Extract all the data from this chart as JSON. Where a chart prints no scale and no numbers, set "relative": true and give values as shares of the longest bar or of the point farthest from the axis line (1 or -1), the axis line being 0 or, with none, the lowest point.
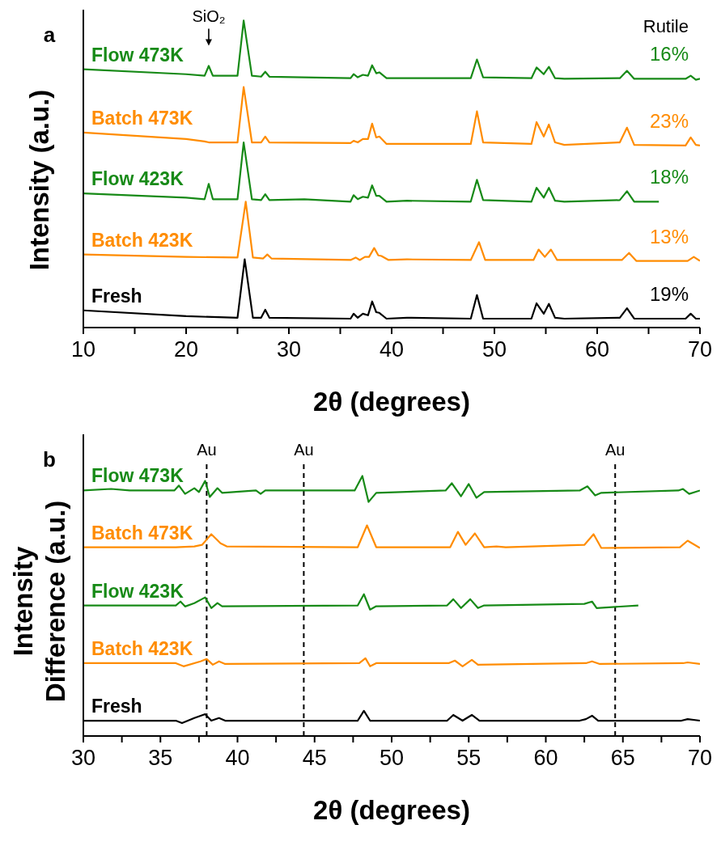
{
  "chart_data": [
    {
      "type": "line",
      "title": "a",
      "xlabel": "2θ (degrees)",
      "ylabel": "Intensity (a.u.)",
      "relative": true,
      "xlim": [
        10,
        70
      ],
      "xticks": [
        10,
        {
          "value": 15,
          "label": null
        },
        20,
        {
          "value": 25,
          "label": null
        },
        30,
        {
          "value": 35,
          "label": null
        },
        40,
        {
          "value": 45,
          "label": null
        },
        50,
        {
          "value": 55,
          "label": null
        },
        60,
        {
          "value": 65,
          "label": null
        },
        70
      ],
      "series": [
        {
          "name": "Flow 473K",
          "color": "#178a17",
          "x": [
            10,
            20,
            21.8,
            22.2,
            22.6,
            25,
            25.6,
            26.4,
            27.3,
            27.7,
            28.1,
            36,
            36.3,
            36.7,
            37.2,
            37.7,
            38.1,
            38.5,
            38.8,
            39.5,
            41.5,
            47.7,
            48.3,
            48.9,
            53.6,
            54.1,
            54.8,
            55.3,
            55.9,
            56.8,
            62.2,
            62.9,
            63.6,
            68.6,
            69.1,
            69.6,
            70
          ],
          "values": [
            0.841,
            0.825,
            0.82,
            0.852,
            0.82,
            0.82,
            1.0,
            0.82,
            0.817,
            0.833,
            0.817,
            0.812,
            0.825,
            0.815,
            0.823,
            0.82,
            0.854,
            0.828,
            0.831,
            0.812,
            0.812,
            0.812,
            0.873,
            0.815,
            0.812,
            0.847,
            0.825,
            0.849,
            0.812,
            0.81,
            0.812,
            0.836,
            0.81,
            0.81,
            0.82,
            0.807,
            0.81
          ]
        },
        {
          "name": "Batch 473K",
          "color": "#ff8c00",
          "x": [
            10,
            20,
            21.8,
            22.2,
            22.6,
            25,
            25.6,
            26.4,
            27.3,
            27.7,
            28.1,
            36,
            36.3,
            36.7,
            37.2,
            37.7,
            38.1,
            38.5,
            38.8,
            39.5,
            41.5,
            47.7,
            48.3,
            48.9,
            53.6,
            54.1,
            54.8,
            55.3,
            55.9,
            56.8,
            62.2,
            62.9,
            63.6,
            68.6,
            69.1,
            69.6,
            70
          ],
          "values": [
            0.635,
            0.614,
            0.606,
            0.603,
            0.603,
            0.603,
            0.783,
            0.603,
            0.603,
            0.622,
            0.603,
            0.601,
            0.608,
            0.603,
            0.614,
            0.614,
            0.664,
            0.619,
            0.622,
            0.598,
            0.598,
            0.598,
            0.704,
            0.603,
            0.598,
            0.669,
            0.622,
            0.661,
            0.603,
            0.595,
            0.603,
            0.651,
            0.595,
            0.593,
            0.619,
            0.595,
            0.593
          ]
        },
        {
          "name": "Flow 423K",
          "color": "#178a17",
          "x": [
            10,
            20,
            21.8,
            22.2,
            22.6,
            25,
            25.6,
            26.4,
            27.3,
            27.7,
            28.1,
            31.5,
            36,
            36.3,
            36.7,
            37.2,
            37.7,
            38.1,
            38.5,
            38.8,
            39.5,
            41.5,
            47.7,
            48.3,
            48.9,
            53.6,
            54.1,
            54.8,
            55.3,
            55.9,
            56.8,
            62.2,
            62.9,
            63.6,
            66
          ],
          "values": [
            0.437,
            0.423,
            0.418,
            0.468,
            0.418,
            0.418,
            0.603,
            0.418,
            0.415,
            0.434,
            0.415,
            0.418,
            0.41,
            0.431,
            0.418,
            0.426,
            0.423,
            0.463,
            0.429,
            0.429,
            0.41,
            0.413,
            0.41,
            0.481,
            0.415,
            0.41,
            0.455,
            0.423,
            0.455,
            0.413,
            0.41,
            0.415,
            0.444,
            0.41,
            0.41
          ]
        },
        {
          "name": "Batch 423K",
          "color": "#ff8c00",
          "x": [
            10,
            20,
            25,
            25.8,
            26.5,
            27.5,
            27.9,
            28.3,
            36,
            36.5,
            36.9,
            37.4,
            37.8,
            38.3,
            38.7,
            39,
            39.7,
            41.5,
            47.7,
            48.5,
            49.1,
            53.8,
            54.3,
            54.9,
            55.5,
            56.1,
            62.4,
            63.1,
            63.8,
            68.8,
            69.4,
            70
          ],
          "values": [
            0.238,
            0.23,
            0.228,
            0.41,
            0.228,
            0.225,
            0.238,
            0.225,
            0.22,
            0.228,
            0.22,
            0.23,
            0.23,
            0.259,
            0.235,
            0.233,
            0.22,
            0.222,
            0.22,
            0.278,
            0.22,
            0.22,
            0.254,
            0.23,
            0.254,
            0.22,
            0.22,
            0.243,
            0.217,
            0.217,
            0.23,
            0.217
          ]
        },
        {
          "name": "Fresh",
          "color": "#000000",
          "x": [
            10,
            20,
            25,
            25.7,
            26.5,
            27.3,
            27.7,
            28.1,
            36,
            36.3,
            36.7,
            37.2,
            37.7,
            38.1,
            38.5,
            38.8,
            39.5,
            41.5,
            47.7,
            48.3,
            48.9,
            53.6,
            54.1,
            54.8,
            55.3,
            55.9,
            56.8,
            62.2,
            62.9,
            63.6,
            68.6,
            69.1,
            69.6,
            70
          ],
          "values": [
            0.056,
            0.037,
            0.032,
            0.222,
            0.032,
            0.032,
            0.058,
            0.032,
            0.029,
            0.045,
            0.032,
            0.045,
            0.04,
            0.085,
            0.05,
            0.048,
            0.029,
            0.032,
            0.029,
            0.106,
            0.029,
            0.029,
            0.079,
            0.045,
            0.077,
            0.032,
            0.029,
            0.032,
            0.063,
            0.029,
            0.029,
            0.045,
            0.029,
            0.029
          ]
        }
      ],
      "annotations": [
        "Rutile",
        "16%",
        "23%",
        "18%",
        "13%",
        "19%",
        {
          "text": "SiO₂",
          "x": 22.2,
          "y": 0.852
        }
      ]
    },
    {
      "type": "line",
      "title": "b",
      "xlabel": "2θ (degrees)",
      "ylabel": "Intensity Difference (a.u.)",
      "relative": true,
      "xlim": [
        30,
        70
      ],
      "xticks": [
        30,
        {
          "value": 32.5,
          "label": null
        },
        35,
        {
          "value": 37.5,
          "label": null
        },
        40,
        {
          "value": 42.5,
          "label": null
        },
        45,
        {
          "value": 47.5,
          "label": null
        },
        50,
        {
          "value": 52.5,
          "label": null
        },
        55,
        {
          "value": 57.5,
          "label": null
        },
        60,
        {
          "value": 62.5,
          "label": null
        },
        65,
        {
          "value": 67.5,
          "label": null
        },
        70
      ],
      "series": [
        {
          "name": "Flow 473K",
          "color": "#178a17",
          "x": [
            30,
            31.8,
            33,
            35.9,
            36.2,
            36.6,
            37.2,
            37.5,
            37.9,
            38.2,
            38.7,
            39,
            41.2,
            41.5,
            41.8,
            47.6,
            48.1,
            48.5,
            49,
            53.5,
            53.9,
            54.5,
            55,
            55.5,
            56,
            62.2,
            62.7,
            63.2,
            63.6,
            68.6,
            68.9,
            69.3,
            70
          ],
          "values": [
            0.944,
            0.95,
            0.944,
            0.944,
            0.963,
            0.931,
            0.953,
            0.938,
            0.981,
            0.919,
            0.953,
            0.935,
            0.944,
            0.931,
            0.944,
            0.944,
            1.0,
            0.9,
            0.935,
            0.944,
            0.972,
            0.922,
            0.969,
            0.916,
            0.938,
            0.944,
            0.96,
            0.925,
            0.935,
            0.944,
            0.95,
            0.931,
            0.944
          ]
        },
        {
          "name": "Batch 473K",
          "color": "#ff8c00",
          "x": [
            30,
            36,
            37.2,
            37.7,
            38.3,
            38.9,
            39.3,
            47.8,
            48.4,
            49,
            53.8,
            54.3,
            54.8,
            55.4,
            56,
            56.8,
            57.4,
            62.5,
            63.1,
            63.6,
            68.7,
            69.2,
            70
          ],
          "values": [
            0.726,
            0.726,
            0.729,
            0.735,
            0.776,
            0.741,
            0.729,
            0.726,
            0.81,
            0.726,
            0.726,
            0.785,
            0.735,
            0.779,
            0.726,
            0.729,
            0.726,
            0.735,
            0.776,
            0.723,
            0.726,
            0.751,
            0.723
          ]
        },
        {
          "name": "Flow 423K",
          "color": "#178a17",
          "x": [
            30,
            36,
            36.3,
            36.6,
            37.2,
            37.9,
            38.3,
            38.7,
            39,
            47.8,
            48.2,
            48.6,
            49,
            53.6,
            54,
            54.5,
            55.1,
            55.6,
            56,
            62.5,
            63,
            63.3,
            66
          ],
          "values": [
            0.502,
            0.502,
            0.517,
            0.498,
            0.511,
            0.533,
            0.492,
            0.511,
            0.499,
            0.502,
            0.545,
            0.486,
            0.499,
            0.502,
            0.526,
            0.492,
            0.526,
            0.492,
            0.502,
            0.508,
            0.517,
            0.492,
            0.502
          ]
        },
        {
          "name": "Batch 423K",
          "color": "#ff8c00",
          "x": [
            30,
            36,
            36.5,
            37.6,
            38,
            38.4,
            38.8,
            39.2,
            47.9,
            48.3,
            48.6,
            49,
            53.7,
            54.1,
            54.6,
            55.2,
            55.6,
            62.6,
            63,
            63.5,
            68.9,
            69.2,
            70
          ],
          "values": [
            0.28,
            0.28,
            0.268,
            0.287,
            0.296,
            0.274,
            0.287,
            0.277,
            0.28,
            0.299,
            0.268,
            0.28,
            0.28,
            0.29,
            0.268,
            0.293,
            0.274,
            0.28,
            0.287,
            0.277,
            0.28,
            0.283,
            0.277
          ]
        },
        {
          "name": "Fresh",
          "color": "#000000",
          "x": [
            30,
            36,
            36.4,
            37.2,
            37.9,
            38.3,
            38.8,
            39.2,
            47.8,
            48.2,
            48.6,
            53.6,
            54,
            54.6,
            55.2,
            55.7,
            62.2,
            62.6,
            63,
            63.4,
            68.8,
            69.2,
            70
          ],
          "values": [
            0.059,
            0.059,
            0.05,
            0.069,
            0.084,
            0.059,
            0.069,
            0.059,
            0.059,
            0.097,
            0.059,
            0.059,
            0.081,
            0.059,
            0.081,
            0.059,
            0.059,
            0.065,
            0.078,
            0.059,
            0.059,
            0.065,
            0.059
          ]
        }
      ],
      "ref_lines": [
        {
          "axis": "x",
          "value": 38,
          "label": "Au",
          "line_style": "dashed",
          "color": "#000000"
        },
        {
          "axis": "x",
          "value": 44.3,
          "label": "Au",
          "line_style": "dashed",
          "color": "#000000"
        },
        {
          "axis": "x",
          "value": 64.5,
          "label": "Au",
          "line_style": "dashed",
          "color": "#000000"
        }
      ]
    }
  ]
}
